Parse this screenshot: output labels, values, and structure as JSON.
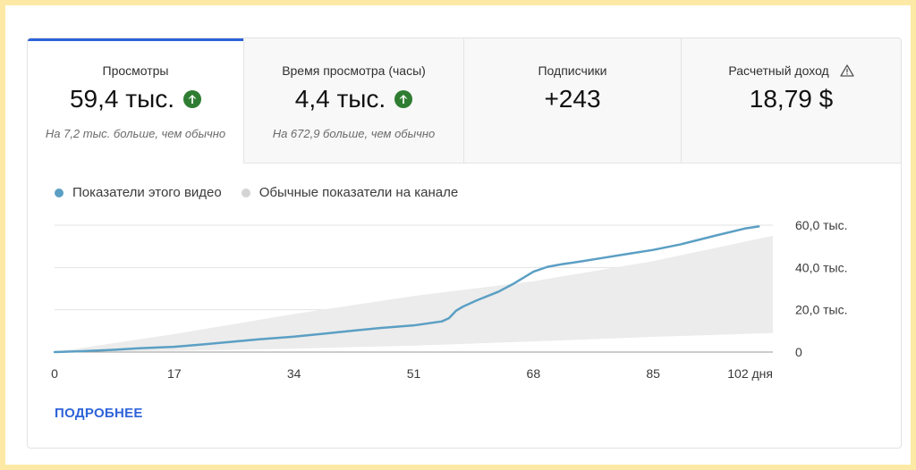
{
  "tabs": [
    {
      "title": "Просмотры",
      "value": "59,4 тыс.",
      "note": "На 7,2 тыс. больше, чем обычно",
      "trend_icon": "arrow-up-icon"
    },
    {
      "title": "Время просмотра (часы)",
      "value": "4,4 тыс.",
      "note": "На 672,9 больше, чем обычно",
      "trend_icon": "arrow-up-icon"
    },
    {
      "title": "Подписчики",
      "value": "+243",
      "note": ""
    },
    {
      "title": "Расчетный доход",
      "value": "18,79 $",
      "note": "",
      "title_icon": "warning-icon"
    }
  ],
  "legend": [
    {
      "label": "Показатели этого видео",
      "color": "#5b9fc4"
    },
    {
      "label": "Обычные показатели на канале",
      "color": "#d4d4d4"
    }
  ],
  "more_link": "ПОДРОБНЕЕ",
  "colors": {
    "accent": "#2d63d9",
    "up": "#2f7d32",
    "line": "#5b9fc4",
    "band": "#ececec"
  },
  "chart_data": {
    "type": "line",
    "x_ticks": [
      "0",
      "17",
      "34",
      "51",
      "68",
      "85",
      "102 дня"
    ],
    "y_ticks": [
      "0",
      "20,0 тыс.",
      "40,0 тыс.",
      "60,0 тыс."
    ],
    "xlim": [
      0,
      102
    ],
    "ylim": [
      0,
      60000
    ],
    "grid": true,
    "series": [
      {
        "name": "Показатели этого видео",
        "x": [
          0,
          4,
          8,
          12,
          17,
          21,
          25,
          29,
          34,
          38,
          42,
          46,
          51,
          55,
          56,
          57,
          58,
          60,
          63,
          65,
          68,
          70,
          72,
          75,
          78,
          81,
          85,
          89,
          94,
          98,
          100
        ],
        "y": [
          0,
          400,
          1000,
          1800,
          2500,
          3600,
          4800,
          6000,
          7300,
          8600,
          10000,
          11300,
          12600,
          14500,
          16000,
          19500,
          21500,
          24500,
          28500,
          32000,
          38000,
          40300,
          41500,
          43000,
          44600,
          46200,
          48300,
          51000,
          55200,
          58400,
          59400
        ]
      },
      {
        "name": "Обычные показатели на канале",
        "x": [
          0,
          17,
          34,
          51,
          68,
          85,
          102
        ],
        "y_low": [
          0,
          600,
          1600,
          3000,
          5000,
          7200,
          9000
        ],
        "y_high": [
          0,
          8500,
          18000,
          26500,
          33500,
          43000,
          55000
        ]
      }
    ]
  }
}
